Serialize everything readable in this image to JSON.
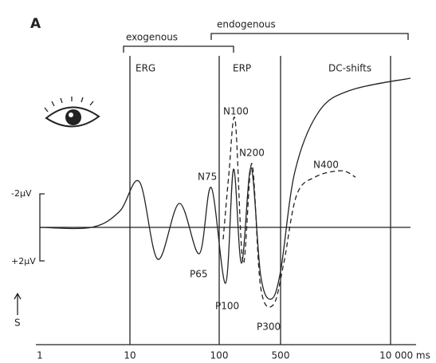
{
  "panel_label": "A",
  "brackets": {
    "exogenous": "exogenous",
    "endogenous": "endogenous"
  },
  "regions": [
    "ERG",
    "ERP",
    "DC-shifts"
  ],
  "peaks": {
    "n100": "N100",
    "n200": "N200",
    "n75": "N75",
    "n400": "N400",
    "p65": "P65",
    "p100": "P100",
    "p300": "P300"
  },
  "scale": {
    "negative": "-2µV",
    "positive": "+2µV",
    "stimulus": "S"
  },
  "x_axis": [
    "1",
    "10",
    "100",
    "500",
    "10 000 ms"
  ]
}
